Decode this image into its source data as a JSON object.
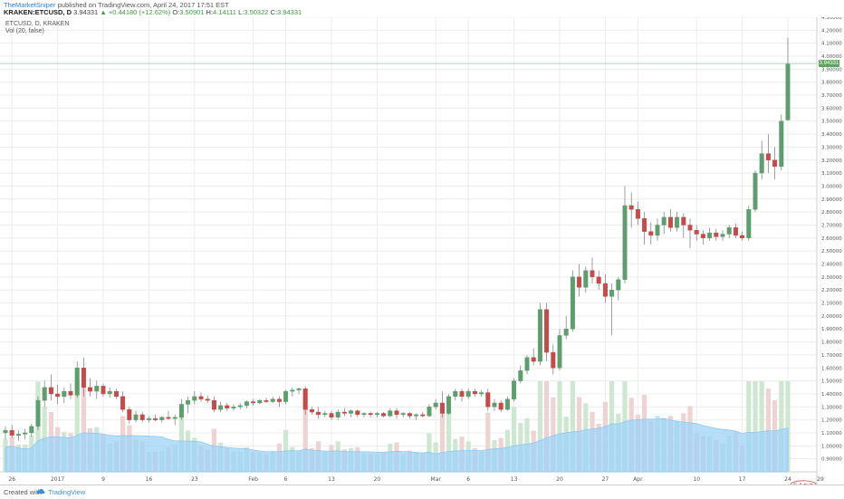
{
  "header": {
    "author": "TheMarketSniper",
    "published": " published on TradingView.com, April 24, 2017 17:51 EST",
    "symbol_line": "KRAKEN:ETCUSD, D",
    "last": "3.94331",
    "change_arrow": "▲",
    "change": "+0.44180 (+12.62%)",
    "o_label": "O:",
    "o_value": "3.50901",
    "h_label": "H:",
    "h_value": "4.14111",
    "l_label": "L:",
    "l_value": "3.50322",
    "c_label": "C:",
    "c_value": "3.94331"
  },
  "legend": {
    "series": "ETCUSD, D, KRAKEN",
    "volume": "Vol (20, false)"
  },
  "last_price_label": "3.94331",
  "footer": {
    "created": "Created with",
    "brand": "TradingView"
  },
  "colors": {
    "up": "#5c9e6e",
    "down": "#c64a4a",
    "vol_up": "#cde7d1",
    "vol_down": "#efd3d3",
    "vol_ma": "#9dd3f7",
    "grid": "#ececec",
    "axis_text": "#555555",
    "price_label": "#5ea35e"
  },
  "chart_data": {
    "type": "candlestick",
    "ylim": [
      0.8,
      4.3
    ],
    "y_ticks": [
      "0.90000",
      "1.00000",
      "1.10000",
      "1.20000",
      "1.30000",
      "1.40000",
      "1.50000",
      "1.60000",
      "1.70000",
      "1.80000",
      "1.90000",
      "2.00000",
      "2.10000",
      "2.20000",
      "2.30000",
      "2.40000",
      "2.50000",
      "2.60000",
      "2.70000",
      "2.80000",
      "2.90000",
      "3.00000",
      "3.10000",
      "3.20000",
      "3.30000",
      "3.40000",
      "3.50000",
      "3.60000",
      "3.70000",
      "3.80000",
      "3.90000",
      "4.00000",
      "4.10000",
      "4.20000",
      "4.30000"
    ],
    "x_ticks": [
      {
        "label": "26",
        "date": "2016-12-26"
      },
      {
        "label": "2017",
        "date": "2017-01-02"
      },
      {
        "label": "9",
        "date": "2017-01-09"
      },
      {
        "label": "16",
        "date": "2017-01-16"
      },
      {
        "label": "23",
        "date": "2017-01-23"
      },
      {
        "label": "Feb",
        "date": "2017-02-01"
      },
      {
        "label": "6",
        "date": "2017-02-06"
      },
      {
        "label": "13",
        "date": "2017-02-13"
      },
      {
        "label": "20",
        "date": "2017-02-20"
      },
      {
        "label": "Mar",
        "date": "2017-03-01"
      },
      {
        "label": "6",
        "date": "2017-03-06"
      },
      {
        "label": "13",
        "date": "2017-03-13"
      },
      {
        "label": "20",
        "date": "2017-03-20"
      },
      {
        "label": "27",
        "date": "2017-03-27"
      },
      {
        "label": "Apr",
        "date": "2017-04-01"
      },
      {
        "label": "10",
        "date": "2017-04-10"
      },
      {
        "label": "17",
        "date": "2017-04-17"
      },
      {
        "label": "24",
        "date": "2017-04-24"
      },
      {
        "label": "29",
        "date": "2017-04-29"
      }
    ],
    "candles": [
      {
        "date": "2016-12-25",
        "o": 1.1,
        "h": 1.15,
        "l": 1.05,
        "c": 1.12
      },
      {
        "date": "2016-12-26",
        "o": 1.12,
        "h": 1.16,
        "l": 1.06,
        "c": 1.08
      },
      {
        "date": "2016-12-27",
        "o": 1.08,
        "h": 1.12,
        "l": 1.04,
        "c": 1.09
      },
      {
        "date": "2016-12-28",
        "o": 1.09,
        "h": 1.13,
        "l": 1.05,
        "c": 1.1
      },
      {
        "date": "2016-12-29",
        "o": 1.1,
        "h": 1.17,
        "l": 1.07,
        "c": 1.15
      },
      {
        "date": "2016-12-30",
        "o": 1.15,
        "h": 1.38,
        "l": 1.12,
        "c": 1.35
      },
      {
        "date": "2016-12-31",
        "o": 1.35,
        "h": 1.5,
        "l": 1.3,
        "c": 1.45
      },
      {
        "date": "2017-01-01",
        "o": 1.45,
        "h": 1.55,
        "l": 1.35,
        "c": 1.4
      },
      {
        "date": "2017-01-02",
        "o": 1.4,
        "h": 1.47,
        "l": 1.32,
        "c": 1.38
      },
      {
        "date": "2017-01-03",
        "o": 1.38,
        "h": 1.45,
        "l": 1.33,
        "c": 1.42
      },
      {
        "date": "2017-01-04",
        "o": 1.42,
        "h": 1.48,
        "l": 1.36,
        "c": 1.39
      },
      {
        "date": "2017-01-05",
        "o": 1.39,
        "h": 1.65,
        "l": 1.37,
        "c": 1.6
      },
      {
        "date": "2017-01-06",
        "o": 1.6,
        "h": 1.68,
        "l": 1.38,
        "c": 1.45
      },
      {
        "date": "2017-01-07",
        "o": 1.45,
        "h": 1.52,
        "l": 1.38,
        "c": 1.42
      },
      {
        "date": "2017-01-08",
        "o": 1.42,
        "h": 1.5,
        "l": 1.36,
        "c": 1.46
      },
      {
        "date": "2017-01-09",
        "o": 1.46,
        "h": 1.48,
        "l": 1.38,
        "c": 1.4
      },
      {
        "date": "2017-01-10",
        "o": 1.4,
        "h": 1.45,
        "l": 1.37,
        "c": 1.42
      },
      {
        "date": "2017-01-11",
        "o": 1.42,
        "h": 1.44,
        "l": 1.36,
        "c": 1.38
      },
      {
        "date": "2017-01-12",
        "o": 1.38,
        "h": 1.42,
        "l": 1.26,
        "c": 1.28
      },
      {
        "date": "2017-01-13",
        "o": 1.28,
        "h": 1.3,
        "l": 1.17,
        "c": 1.2
      },
      {
        "date": "2017-01-14",
        "o": 1.2,
        "h": 1.27,
        "l": 1.18,
        "c": 1.24
      },
      {
        "date": "2017-01-15",
        "o": 1.24,
        "h": 1.26,
        "l": 1.18,
        "c": 1.2
      },
      {
        "date": "2017-01-16",
        "o": 1.2,
        "h": 1.23,
        "l": 1.18,
        "c": 1.21
      },
      {
        "date": "2017-01-17",
        "o": 1.21,
        "h": 1.24,
        "l": 1.19,
        "c": 1.2
      },
      {
        "date": "2017-01-18",
        "o": 1.2,
        "h": 1.23,
        "l": 1.18,
        "c": 1.22
      },
      {
        "date": "2017-01-19",
        "o": 1.22,
        "h": 1.27,
        "l": 1.2,
        "c": 1.21
      },
      {
        "date": "2017-01-20",
        "o": 1.21,
        "h": 1.24,
        "l": 1.16,
        "c": 1.22
      },
      {
        "date": "2017-01-21",
        "o": 1.22,
        "h": 1.36,
        "l": 1.2,
        "c": 1.32
      },
      {
        "date": "2017-01-22",
        "o": 1.32,
        "h": 1.38,
        "l": 1.25,
        "c": 1.35
      },
      {
        "date": "2017-01-23",
        "o": 1.35,
        "h": 1.42,
        "l": 1.32,
        "c": 1.38
      },
      {
        "date": "2017-01-24",
        "o": 1.38,
        "h": 1.41,
        "l": 1.34,
        "c": 1.36
      },
      {
        "date": "2017-01-25",
        "o": 1.36,
        "h": 1.39,
        "l": 1.33,
        "c": 1.35
      },
      {
        "date": "2017-01-26",
        "o": 1.35,
        "h": 1.38,
        "l": 1.26,
        "c": 1.28
      },
      {
        "date": "2017-01-27",
        "o": 1.28,
        "h": 1.34,
        "l": 1.26,
        "c": 1.31
      },
      {
        "date": "2017-01-28",
        "o": 1.31,
        "h": 1.33,
        "l": 1.27,
        "c": 1.29
      },
      {
        "date": "2017-01-29",
        "o": 1.29,
        "h": 1.32,
        "l": 1.27,
        "c": 1.3
      },
      {
        "date": "2017-01-30",
        "o": 1.3,
        "h": 1.33,
        "l": 1.28,
        "c": 1.31
      },
      {
        "date": "2017-01-31",
        "o": 1.31,
        "h": 1.35,
        "l": 1.29,
        "c": 1.34
      },
      {
        "date": "2017-02-01",
        "o": 1.34,
        "h": 1.36,
        "l": 1.31,
        "c": 1.33
      },
      {
        "date": "2017-02-02",
        "o": 1.33,
        "h": 1.36,
        "l": 1.32,
        "c": 1.35
      },
      {
        "date": "2017-02-03",
        "o": 1.35,
        "h": 1.37,
        "l": 1.33,
        "c": 1.34
      },
      {
        "date": "2017-02-04",
        "o": 1.34,
        "h": 1.38,
        "l": 1.33,
        "c": 1.36
      },
      {
        "date": "2017-02-05",
        "o": 1.36,
        "h": 1.38,
        "l": 1.3,
        "c": 1.34
      },
      {
        "date": "2017-02-06",
        "o": 1.34,
        "h": 1.43,
        "l": 1.32,
        "c": 1.42
      },
      {
        "date": "2017-02-07",
        "o": 1.42,
        "h": 1.45,
        "l": 1.38,
        "c": 1.43
      },
      {
        "date": "2017-02-08",
        "o": 1.43,
        "h": 1.45,
        "l": 1.4,
        "c": 1.44
      },
      {
        "date": "2017-02-09",
        "o": 1.44,
        "h": 1.46,
        "l": 1.24,
        "c": 1.28
      },
      {
        "date": "2017-02-10",
        "o": 1.28,
        "h": 1.3,
        "l": 1.24,
        "c": 1.26
      },
      {
        "date": "2017-02-11",
        "o": 1.26,
        "h": 1.3,
        "l": 1.21,
        "c": 1.24
      },
      {
        "date": "2017-02-12",
        "o": 1.24,
        "h": 1.27,
        "l": 1.22,
        "c": 1.25
      },
      {
        "date": "2017-02-13",
        "o": 1.25,
        "h": 1.27,
        "l": 1.2,
        "c": 1.22
      },
      {
        "date": "2017-02-14",
        "o": 1.22,
        "h": 1.28,
        "l": 1.2,
        "c": 1.26
      },
      {
        "date": "2017-02-15",
        "o": 1.26,
        "h": 1.29,
        "l": 1.23,
        "c": 1.25
      },
      {
        "date": "2017-02-16",
        "o": 1.25,
        "h": 1.28,
        "l": 1.22,
        "c": 1.27
      },
      {
        "date": "2017-02-17",
        "o": 1.27,
        "h": 1.28,
        "l": 1.22,
        "c": 1.24
      },
      {
        "date": "2017-02-18",
        "o": 1.24,
        "h": 1.26,
        "l": 1.22,
        "c": 1.25
      },
      {
        "date": "2017-02-19",
        "o": 1.25,
        "h": 1.26,
        "l": 1.22,
        "c": 1.24
      },
      {
        "date": "2017-02-20",
        "o": 1.24,
        "h": 1.26,
        "l": 1.22,
        "c": 1.25
      },
      {
        "date": "2017-02-21",
        "o": 1.25,
        "h": 1.26,
        "l": 1.22,
        "c": 1.23
      },
      {
        "date": "2017-02-22",
        "o": 1.23,
        "h": 1.29,
        "l": 1.22,
        "c": 1.27
      },
      {
        "date": "2017-02-23",
        "o": 1.27,
        "h": 1.29,
        "l": 1.21,
        "c": 1.24
      },
      {
        "date": "2017-02-24",
        "o": 1.24,
        "h": 1.26,
        "l": 1.22,
        "c": 1.25
      },
      {
        "date": "2017-02-25",
        "o": 1.25,
        "h": 1.26,
        "l": 1.21,
        "c": 1.23
      },
      {
        "date": "2017-02-26",
        "o": 1.23,
        "h": 1.25,
        "l": 1.2,
        "c": 1.24
      },
      {
        "date": "2017-02-27",
        "o": 1.24,
        "h": 1.26,
        "l": 1.22,
        "c": 1.23
      },
      {
        "date": "2017-02-28",
        "o": 1.23,
        "h": 1.32,
        "l": 1.22,
        "c": 1.3
      },
      {
        "date": "2017-03-01",
        "o": 1.3,
        "h": 1.36,
        "l": 1.28,
        "c": 1.33
      },
      {
        "date": "2017-03-02",
        "o": 1.33,
        "h": 1.42,
        "l": 1.22,
        "c": 1.25
      },
      {
        "date": "2017-03-03",
        "o": 1.25,
        "h": 1.4,
        "l": 1.24,
        "c": 1.38
      },
      {
        "date": "2017-03-04",
        "o": 1.38,
        "h": 1.44,
        "l": 1.35,
        "c": 1.42
      },
      {
        "date": "2017-03-05",
        "o": 1.42,
        "h": 1.44,
        "l": 1.34,
        "c": 1.38
      },
      {
        "date": "2017-03-06",
        "o": 1.38,
        "h": 1.44,
        "l": 1.36,
        "c": 1.42
      },
      {
        "date": "2017-03-07",
        "o": 1.42,
        "h": 1.44,
        "l": 1.38,
        "c": 1.4
      },
      {
        "date": "2017-03-08",
        "o": 1.4,
        "h": 1.43,
        "l": 1.38,
        "c": 1.41
      },
      {
        "date": "2017-03-09",
        "o": 1.41,
        "h": 1.44,
        "l": 1.27,
        "c": 1.3
      },
      {
        "date": "2017-03-10",
        "o": 1.3,
        "h": 1.36,
        "l": 1.27,
        "c": 1.33
      },
      {
        "date": "2017-03-11",
        "o": 1.33,
        "h": 1.35,
        "l": 1.26,
        "c": 1.28
      },
      {
        "date": "2017-03-12",
        "o": 1.28,
        "h": 1.38,
        "l": 1.27,
        "c": 1.36
      },
      {
        "date": "2017-03-13",
        "o": 1.36,
        "h": 1.52,
        "l": 1.34,
        "c": 1.5
      },
      {
        "date": "2017-03-14",
        "o": 1.5,
        "h": 1.62,
        "l": 1.48,
        "c": 1.58
      },
      {
        "date": "2017-03-15",
        "o": 1.58,
        "h": 1.7,
        "l": 1.55,
        "c": 1.68
      },
      {
        "date": "2017-03-16",
        "o": 1.68,
        "h": 1.75,
        "l": 1.62,
        "c": 1.65
      },
      {
        "date": "2017-03-17",
        "o": 1.65,
        "h": 2.1,
        "l": 1.62,
        "c": 2.05
      },
      {
        "date": "2017-03-18",
        "o": 2.05,
        "h": 2.1,
        "l": 1.65,
        "c": 1.72
      },
      {
        "date": "2017-03-19",
        "o": 1.72,
        "h": 1.78,
        "l": 1.55,
        "c": 1.6
      },
      {
        "date": "2017-03-20",
        "o": 1.6,
        "h": 1.9,
        "l": 1.58,
        "c": 1.85
      },
      {
        "date": "2017-03-21",
        "o": 1.85,
        "h": 2.0,
        "l": 1.82,
        "c": 1.9
      },
      {
        "date": "2017-03-22",
        "o": 1.9,
        "h": 2.35,
        "l": 1.88,
        "c": 2.3
      },
      {
        "date": "2017-03-23",
        "o": 2.3,
        "h": 2.4,
        "l": 2.15,
        "c": 2.22
      },
      {
        "date": "2017-03-24",
        "o": 2.22,
        "h": 2.38,
        "l": 2.18,
        "c": 2.35
      },
      {
        "date": "2017-03-25",
        "o": 2.35,
        "h": 2.45,
        "l": 2.25,
        "c": 2.3
      },
      {
        "date": "2017-03-26",
        "o": 2.3,
        "h": 2.35,
        "l": 2.2,
        "c": 2.25
      },
      {
        "date": "2017-03-27",
        "o": 2.25,
        "h": 2.32,
        "l": 2.1,
        "c": 2.15
      },
      {
        "date": "2017-03-28",
        "o": 2.15,
        "h": 2.25,
        "l": 1.85,
        "c": 2.2
      },
      {
        "date": "2017-03-29",
        "o": 2.2,
        "h": 2.3,
        "l": 2.12,
        "c": 2.28
      },
      {
        "date": "2017-03-30",
        "o": 2.28,
        "h": 3.0,
        "l": 2.25,
        "c": 2.85
      },
      {
        "date": "2017-03-31",
        "o": 2.85,
        "h": 2.95,
        "l": 2.68,
        "c": 2.82
      },
      {
        "date": "2017-04-01",
        "o": 2.82,
        "h": 2.88,
        "l": 2.7,
        "c": 2.75
      },
      {
        "date": "2017-04-02",
        "o": 2.75,
        "h": 2.8,
        "l": 2.55,
        "c": 2.65
      },
      {
        "date": "2017-04-03",
        "o": 2.65,
        "h": 2.72,
        "l": 2.55,
        "c": 2.62
      },
      {
        "date": "2017-04-04",
        "o": 2.62,
        "h": 2.75,
        "l": 2.58,
        "c": 2.7
      },
      {
        "date": "2017-04-05",
        "o": 2.7,
        "h": 2.8,
        "l": 2.63,
        "c": 2.76
      },
      {
        "date": "2017-04-06",
        "o": 2.76,
        "h": 2.82,
        "l": 2.65,
        "c": 2.68
      },
      {
        "date": "2017-04-07",
        "o": 2.68,
        "h": 2.8,
        "l": 2.65,
        "c": 2.76
      },
      {
        "date": "2017-04-08",
        "o": 2.76,
        "h": 2.79,
        "l": 2.6,
        "c": 2.7
      },
      {
        "date": "2017-04-09",
        "o": 2.7,
        "h": 2.75,
        "l": 2.52,
        "c": 2.66
      },
      {
        "date": "2017-04-10",
        "o": 2.66,
        "h": 2.7,
        "l": 2.58,
        "c": 2.63
      },
      {
        "date": "2017-04-11",
        "o": 2.63,
        "h": 2.66,
        "l": 2.55,
        "c": 2.6
      },
      {
        "date": "2017-04-12",
        "o": 2.6,
        "h": 2.68,
        "l": 2.58,
        "c": 2.64
      },
      {
        "date": "2017-04-13",
        "o": 2.64,
        "h": 2.67,
        "l": 2.58,
        "c": 2.61
      },
      {
        "date": "2017-04-14",
        "o": 2.61,
        "h": 2.66,
        "l": 2.58,
        "c": 2.63
      },
      {
        "date": "2017-04-15",
        "o": 2.63,
        "h": 2.7,
        "l": 2.6,
        "c": 2.68
      },
      {
        "date": "2017-04-16",
        "o": 2.68,
        "h": 2.71,
        "l": 2.6,
        "c": 2.62
      },
      {
        "date": "2017-04-17",
        "o": 2.62,
        "h": 2.65,
        "l": 2.58,
        "c": 2.6
      },
      {
        "date": "2017-04-18",
        "o": 2.6,
        "h": 2.85,
        "l": 2.58,
        "c": 2.82
      },
      {
        "date": "2017-04-19",
        "o": 2.82,
        "h": 3.12,
        "l": 2.8,
        "c": 3.1
      },
      {
        "date": "2017-04-20",
        "o": 3.1,
        "h": 3.35,
        "l": 3.05,
        "c": 3.25
      },
      {
        "date": "2017-04-21",
        "o": 3.25,
        "h": 3.4,
        "l": 3.1,
        "c": 3.2
      },
      {
        "date": "2017-04-22",
        "o": 3.2,
        "h": 3.3,
        "l": 3.05,
        "c": 3.15
      },
      {
        "date": "2017-04-23",
        "o": 3.15,
        "h": 3.55,
        "l": 3.12,
        "c": 3.5
      },
      {
        "date": "2017-04-24",
        "o": 3.50901,
        "h": 4.14111,
        "l": 3.50322,
        "c": 3.94331
      }
    ]
  }
}
